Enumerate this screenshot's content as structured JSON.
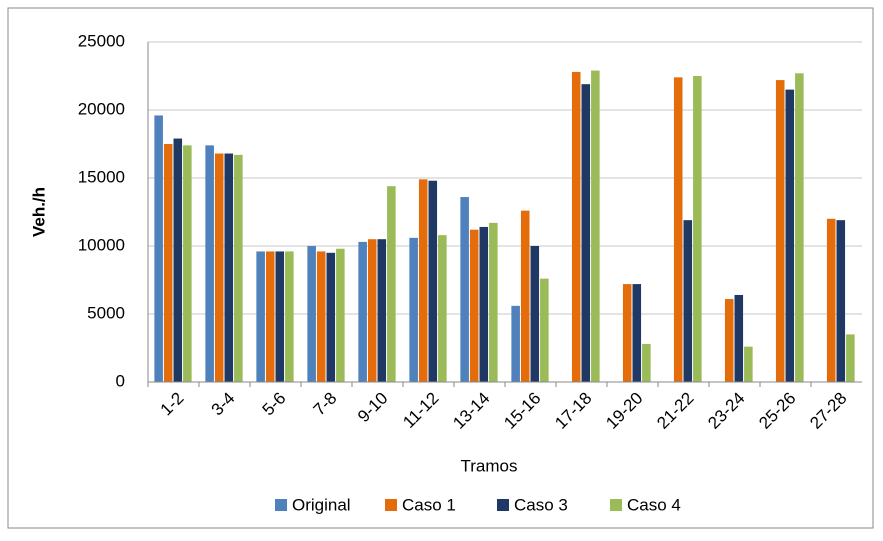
{
  "chart_data": {
    "type": "bar",
    "x_label": "Tramos",
    "y_label": "Veh./h",
    "categories": [
      "1-2",
      "3-4",
      "5-6",
      "7-8",
      "9-10",
      "11-12",
      "13-14",
      "15-16",
      "17-18",
      "19-20",
      "21-22",
      "23-24",
      "25-26",
      "27-28"
    ],
    "series": [
      {
        "name": "Original",
        "color": "#4f81bd",
        "values": [
          19600,
          17400,
          9600,
          10000,
          10300,
          10600,
          13600,
          5600,
          null,
          null,
          null,
          null,
          null,
          null
        ]
      },
      {
        "name": "Caso 1",
        "color": "#e46c0a",
        "values": [
          17500,
          16800,
          9600,
          9600,
          10500,
          14900,
          11200,
          12600,
          22800,
          7200,
          22400,
          6100,
          22200,
          12000
        ]
      },
      {
        "name": "Caso 3",
        "color": "#1f3864",
        "values": [
          17900,
          16800,
          9600,
          9500,
          10500,
          14800,
          11400,
          10000,
          21900,
          7200,
          11900,
          6400,
          21500,
          11900
        ]
      },
      {
        "name": "Caso 4",
        "color": "#9bbb59",
        "values": [
          17400,
          16700,
          9600,
          9800,
          14400,
          10800,
          11700,
          7600,
          22900,
          2800,
          22500,
          2600,
          22700,
          3500
        ]
      }
    ],
    "ylim": [
      0,
      25000
    ],
    "yticks": [
      0,
      5000,
      10000,
      15000,
      20000,
      25000
    ],
    "grid": true
  }
}
